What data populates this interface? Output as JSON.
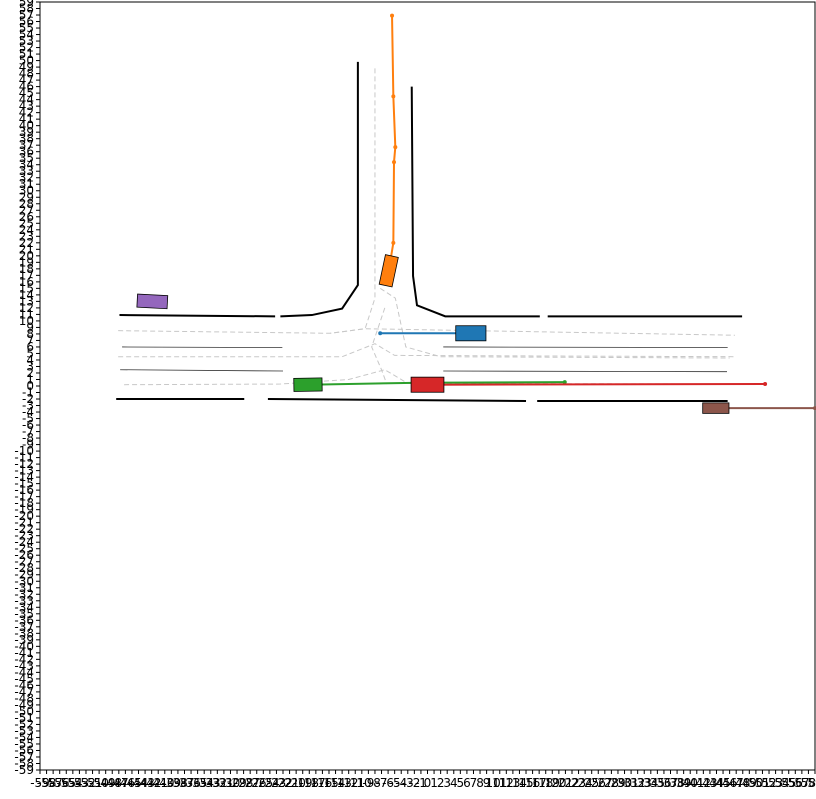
{
  "chart_data": {
    "type": "scene",
    "xlim": [
      -59,
      59
    ],
    "ylim": [
      -59,
      59
    ],
    "xticks": [
      -59,
      -58,
      -57,
      -56,
      -55,
      -54,
      -53,
      -52,
      -51,
      -50,
      -49,
      -48,
      -47,
      -46,
      -45,
      -44,
      -43,
      -42,
      -41,
      -40,
      -39,
      -38,
      -37,
      -36,
      -35,
      -34,
      -33,
      -32,
      -31,
      -30,
      -29,
      -28,
      -27,
      -26,
      -25,
      -24,
      -23,
      -22,
      -21,
      -20,
      -19,
      -18,
      -17,
      -16,
      -15,
      -14,
      -13,
      -12,
      -11,
      -10,
      -9,
      -8,
      -7,
      -6,
      -5,
      -4,
      -3,
      -2,
      -1,
      0,
      1,
      2,
      3,
      4,
      5,
      6,
      7,
      8,
      9,
      10,
      11,
      12,
      13,
      14,
      15,
      16,
      17,
      18,
      19,
      20,
      21,
      22,
      23,
      24,
      25,
      26,
      27,
      28,
      29,
      30,
      31,
      32,
      33,
      34,
      35,
      36,
      37,
      38,
      39,
      40,
      41,
      42,
      43,
      44,
      45,
      46,
      47,
      48,
      49,
      50,
      51,
      52,
      53,
      54,
      55,
      56,
      57,
      58,
      59
    ],
    "yticks": [
      -59,
      -58,
      -57,
      -56,
      -55,
      -54,
      -53,
      -52,
      -51,
      -50,
      -49,
      -48,
      -47,
      -46,
      -45,
      -44,
      -43,
      -42,
      -41,
      -40,
      -39,
      -38,
      -37,
      -36,
      -35,
      -34,
      -33,
      -32,
      -31,
      -30,
      -29,
      -28,
      -27,
      -26,
      -25,
      -24,
      -23,
      -22,
      -21,
      -20,
      -19,
      -18,
      -17,
      -16,
      -15,
      -14,
      -13,
      -12,
      -11,
      -10,
      -9,
      -8,
      -7,
      -6,
      -5,
      -4,
      -3,
      -2,
      -1,
      0,
      1,
      2,
      3,
      4,
      5,
      6,
      7,
      8,
      9,
      10,
      11,
      12,
      13,
      14,
      15,
      16,
      17,
      18,
      19,
      20,
      21,
      22,
      23,
      24,
      25,
      26,
      27,
      28,
      29,
      30,
      31,
      32,
      33,
      34,
      35,
      36,
      37,
      38,
      39,
      40,
      41,
      42,
      43,
      44,
      45,
      46,
      47,
      48,
      49,
      50,
      51,
      52,
      53,
      54,
      55,
      56,
      57,
      58,
      59
    ],
    "road_edges": [
      {
        "x": [
          -10.6,
          -10.6,
          -13.0,
          -17.6,
          -22.4
        ],
        "y": [
          49.8,
          15.5,
          11.9,
          10.9,
          10.7
        ]
      },
      {
        "x": [
          -46.9,
          -23.2
        ],
        "y": [
          10.9,
          10.7
        ]
      },
      {
        "x": [
          -2.4,
          -2.2,
          -1.6,
          2.7,
          17.1
        ],
        "y": [
          46.0,
          16.9,
          12.4,
          10.7,
          10.7
        ]
      },
      {
        "x": [
          18.3,
          47.9
        ],
        "y": [
          10.7,
          10.7
        ]
      },
      {
        "x": [
          -47.4,
          -27.9
        ],
        "y": [
          -2.0,
          -2.0
        ]
      },
      {
        "x": [
          -24.3,
          15.0
        ],
        "y": [
          -2.0,
          -2.3
        ]
      },
      {
        "x": [
          16.7,
          45.7
        ],
        "y": [
          -2.3,
          -2.3
        ]
      }
    ],
    "lane_lines": [
      {
        "x": [
          -46.5,
          -22.1
        ],
        "y": [
          6.0,
          5.9
        ]
      },
      {
        "x": [
          2.4,
          45.7
        ],
        "y": [
          6.0,
          5.9
        ]
      },
      {
        "x": [
          -46.8,
          -22.0
        ],
        "y": [
          2.5,
          2.3
        ]
      },
      {
        "x": [
          2.4,
          45.6
        ],
        "y": [
          2.3,
          2.2
        ]
      }
    ],
    "centerlines": [
      {
        "x": [
          -47.1,
          -14.8,
          -9.5,
          46.8
        ],
        "y": [
          8.5,
          8.1,
          8.8,
          7.8
        ]
      },
      {
        "x": [
          -47.1,
          -13.0,
          -8.0,
          -5.0,
          46.8
        ],
        "y": [
          4.5,
          4.5,
          6.5,
          4.7,
          4.5
        ]
      },
      {
        "x": [
          -46.2,
          -22.4,
          -12.0,
          -6.5,
          -3.0,
          46.0
        ],
        "y": [
          0.2,
          0.3,
          1.0,
          2.5,
          0.4,
          0.3
        ]
      },
      {
        "x": [
          -8.0,
          -8.0,
          -9.5,
          -14.8
        ],
        "y": [
          48.8,
          13.5,
          8.8,
          8.1
        ]
      },
      {
        "x": [
          -7.2,
          -4.9,
          -3.3,
          2.0,
          46.0
        ],
        "y": [
          15.0,
          13.5,
          6.0,
          4.5,
          4.3
        ]
      },
      {
        "x": [
          -6.5,
          -8.5,
          -7.0,
          -6.2
        ],
        "y": [
          12.0,
          6.0,
          2.5,
          0.3
        ]
      }
    ],
    "vehicles": [
      {
        "x": -5.9,
        "y": 17.7,
        "length": 4.6,
        "width": 2.0,
        "heading": 78,
        "color": "#ff7f0e",
        "trajectory": {
          "x": [
            -5.9,
            -5.2,
            -5.1,
            -4.9,
            -5.2,
            -5.4
          ],
          "y": [
            17.7,
            22.0,
            34.4,
            36.7,
            44.5,
            56.9
          ]
        }
      },
      {
        "x": -41.9,
        "y": 13.0,
        "length": 4.6,
        "width": 2.0,
        "heading": -3,
        "color": "#9467bd"
      },
      {
        "x": 6.6,
        "y": 8.1,
        "length": 4.6,
        "width": 2.3,
        "heading": 0,
        "color": "#1f77b4",
        "trajectory": {
          "x": [
            6.6,
            -7.2
          ],
          "y": [
            8.1,
            8.1
          ]
        }
      },
      {
        "x": -18.2,
        "y": 0.2,
        "length": 4.3,
        "width": 2.0,
        "heading": 1,
        "color": "#2ca02c",
        "trajectory": {
          "x": [
            -18.2,
            -1.1,
            20.9
          ],
          "y": [
            0.2,
            0.5,
            0.6
          ]
        }
      },
      {
        "x": 0.0,
        "y": 0.2,
        "length": 5.0,
        "width": 2.3,
        "heading": 0,
        "color": "#d62728",
        "trajectory": {
          "x": [
            0.0,
            51.4
          ],
          "y": [
            0.2,
            0.3
          ]
        }
      },
      {
        "x": 43.9,
        "y": -3.4,
        "length": 4.0,
        "width": 1.6,
        "heading": 0,
        "color": "#8c564b",
        "trajectory": {
          "x": [
            43.9,
            59.0
          ],
          "y": [
            -3.4,
            -3.4
          ]
        }
      }
    ]
  }
}
